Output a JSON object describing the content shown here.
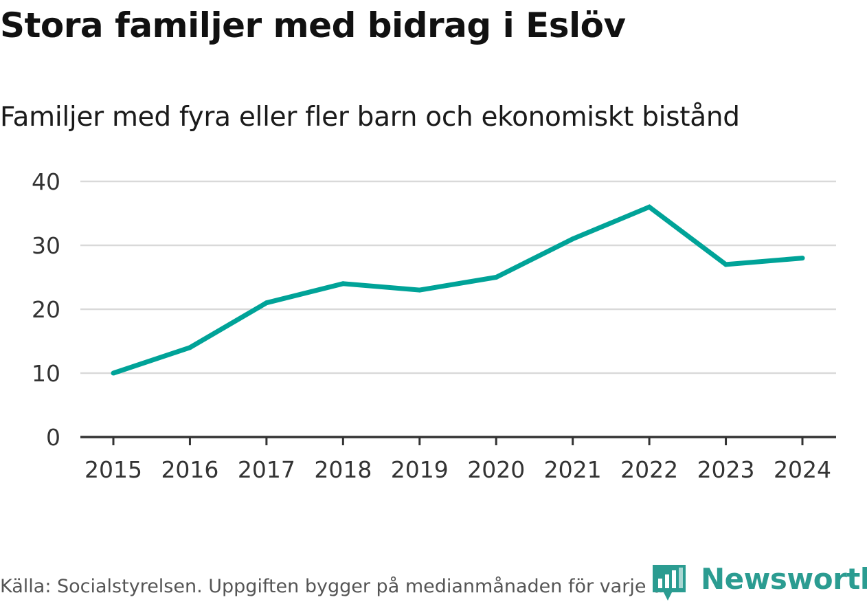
{
  "header": {
    "title": "Stora familjer med bidrag i Eslöv",
    "subtitle": "Familjer med fyra eller fler barn och ekonomiskt bistånd"
  },
  "footer": {
    "source": "Källa: Socialstyrelsen. Uppgiften bygger på medianmånaden för varje år"
  },
  "brand": {
    "name": "Newsworthy"
  },
  "colors": {
    "line": "#00a398",
    "grid": "#d9d9d9",
    "axis": "#333333",
    "brand": "#2b9c91"
  },
  "chart_data": {
    "type": "line",
    "title": "Stora familjer med bidrag i Eslöv",
    "subtitle": "Familjer med fyra eller fler barn och ekonomiskt bistånd",
    "x": [
      "2015",
      "2016",
      "2017",
      "2018",
      "2019",
      "2020",
      "2021",
      "2022",
      "2023",
      "2024"
    ],
    "series": [
      {
        "name": "Familjer",
        "values": [
          10,
          14,
          21,
          24,
          23,
          25,
          31,
          36,
          27,
          28
        ]
      }
    ],
    "ylim": [
      0,
      40
    ],
    "yticks": [
      "0",
      "10",
      "20",
      "30",
      "40"
    ],
    "ytick_values": [
      0,
      10,
      20,
      30,
      40
    ],
    "xlabel": "",
    "ylabel": "",
    "grid": true
  }
}
